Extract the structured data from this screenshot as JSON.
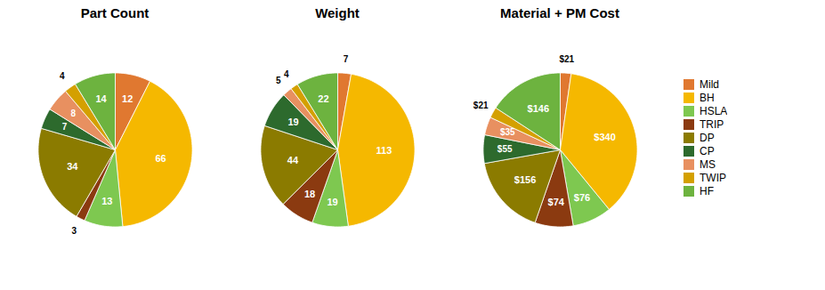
{
  "chart_data": [
    {
      "type": "pie",
      "title": "Part Count",
      "categories": [
        "Mild",
        "BH",
        "HSLA",
        "TRIP",
        "DP",
        "CP",
        "MS",
        "TWIP",
        "HF"
      ],
      "values": [
        12,
        66,
        13,
        3,
        34,
        7,
        8,
        4,
        14
      ],
      "colors": [
        "#E07830",
        "#F5B800",
        "#7EC850",
        "#8B3A10",
        "#8B7B00",
        "#2D6A2D",
        "#E89060",
        "#D4A000",
        "#6DB33F"
      ],
      "data_labels": true
    },
    {
      "type": "pie",
      "title": "Weight",
      "categories": [
        "Mild",
        "BH",
        "HSLA",
        "TRIP",
        "DP",
        "CP",
        "MS",
        "TWIP",
        "HF"
      ],
      "values": [
        7,
        113,
        19,
        18,
        44,
        19,
        5,
        4,
        22
      ],
      "colors": [
        "#E07830",
        "#F5B800",
        "#7EC850",
        "#8B3A10",
        "#8B7B00",
        "#2D6A2D",
        "#E89060",
        "#D4A000",
        "#6DB33F"
      ],
      "data_labels": true
    },
    {
      "type": "pie",
      "title": "Material + PM Cost",
      "categories": [
        "Mild",
        "BH",
        "HSLA",
        "TRIP",
        "DP",
        "CP",
        "MS",
        "TWIP",
        "HF"
      ],
      "values": [
        21,
        340,
        76,
        74,
        156,
        55,
        35,
        21,
        146
      ],
      "value_labels": [
        "$21",
        "$340",
        "$76",
        "$74",
        "$156",
        "$55",
        "$35",
        "$21",
        "$146"
      ],
      "colors": [
        "#E07830",
        "#F5B800",
        "#7EC850",
        "#8B3A10",
        "#8B7B00",
        "#2D6A2D",
        "#E89060",
        "#D4A000",
        "#6DB33F"
      ],
      "data_labels": true,
      "legend": "right"
    }
  ]
}
